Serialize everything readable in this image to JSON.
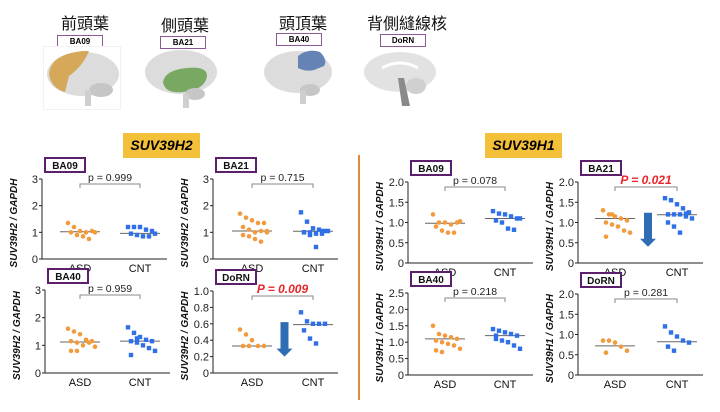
{
  "regions": [
    {
      "title": "前頭葉",
      "tag": "BA09",
      "color": "#d6a95a"
    },
    {
      "title": "側頭葉",
      "tag": "BA21",
      "color": "#79a863"
    },
    {
      "title": "頭頂葉",
      "tag": "BA40",
      "color": "#6583b5"
    },
    {
      "title": "背側縫線核",
      "tag": "DoRN",
      "color": "#8a8a8a"
    }
  ],
  "banners": {
    "left": "SUV39H2",
    "right": "SUV39H1"
  },
  "colors": {
    "asd": "#f29a3c",
    "cnt": "#2f6fe8",
    "significant": "#e8262b",
    "tag_border": "#5b1f6b",
    "arrow": "#2e6db4"
  },
  "chart_data": [
    {
      "type": "scatter",
      "gene": "SUV39H2",
      "tag": "BA09",
      "ylabel": "SUV39H2 / GAPDH",
      "categories": [
        "ASD",
        "CNT"
      ],
      "ylim": [
        0,
        3
      ],
      "yticks": [
        "0",
        "1",
        "2",
        "3"
      ],
      "p_text": "p = 0.999",
      "significant": false,
      "arrow": false,
      "series": [
        {
          "name": "ASD",
          "values": [
            1.35,
            1.2,
            1.05,
            1.0,
            1.05,
            1.0,
            0.9,
            0.85,
            0.75,
            1.0
          ],
          "median": 1.02
        },
        {
          "name": "CNT",
          "values": [
            1.2,
            1.2,
            1.2,
            1.1,
            1.05,
            0.95,
            0.9,
            0.85,
            0.85,
            0.95
          ],
          "median": 0.96
        }
      ]
    },
    {
      "type": "scatter",
      "gene": "SUV39H2",
      "tag": "BA21",
      "ylabel": "SUV39H2 / GAPDH",
      "categories": [
        "ASD",
        "CNT"
      ],
      "ylim": [
        0,
        3
      ],
      "yticks": [
        "0",
        "1",
        "2",
        "3"
      ],
      "p_text": "p = 0.715",
      "significant": false,
      "arrow": false,
      "series": [
        {
          "name": "ASD",
          "values": [
            1.7,
            1.55,
            1.45,
            1.35,
            1.35,
            1.2,
            1.1,
            1.0,
            1.05,
            1.0,
            0.9,
            0.85,
            0.75,
            0.65,
            1.05
          ],
          "median": 1.05
        },
        {
          "name": "CNT",
          "values": [
            1.75,
            1.4,
            1.15,
            1.1,
            1.05,
            1.0,
            1.0,
            0.95,
            0.95,
            1.05,
            1.0,
            0.9,
            0.45,
            1.05
          ],
          "median": 1.04
        }
      ]
    },
    {
      "type": "scatter",
      "gene": "SUV39H2",
      "tag": "BA40",
      "ylabel": "SUV39H2 / GAPDH",
      "categories": [
        "ASD",
        "CNT"
      ],
      "ylim": [
        0,
        3
      ],
      "yticks": [
        "0",
        "1",
        "2",
        "3"
      ],
      "p_text": "p = 0.959",
      "significant": false,
      "arrow": false,
      "series": [
        {
          "name": "ASD",
          "values": [
            1.6,
            1.5,
            1.4,
            1.2,
            1.15,
            1.15,
            1.1,
            1.0,
            1.1,
            0.95,
            0.8,
            0.8
          ],
          "median": 1.12
        },
        {
          "name": "CNT",
          "values": [
            1.65,
            1.45,
            1.3,
            1.2,
            1.15,
            1.15,
            1.1,
            1.0,
            0.9,
            0.8,
            0.65,
            1.25
          ],
          "median": 1.15
        }
      ]
    },
    {
      "type": "scatter",
      "gene": "SUV39H2",
      "tag": "DoRN",
      "ylabel": "SUV39H2 / GAPDH",
      "categories": [
        "ASD",
        "CNT"
      ],
      "ylim": [
        0,
        1
      ],
      "yticks": [
        "0",
        "0.2",
        "0.4",
        "0.6",
        "0.8",
        "1.0"
      ],
      "p_text": "P = 0.009",
      "significant": true,
      "arrow": true,
      "series": [
        {
          "name": "ASD",
          "values": [
            0.53,
            0.47,
            0.4,
            0.33,
            0.33,
            0.33,
            0.33
          ],
          "median": 0.33
        },
        {
          "name": "CNT",
          "values": [
            0.74,
            0.63,
            0.6,
            0.6,
            0.6,
            0.52,
            0.42,
            0.36
          ],
          "median": 0.59
        }
      ]
    },
    {
      "type": "scatter",
      "gene": "SUV39H1",
      "tag": "BA09",
      "ylabel": "SUV39H1 / GAPDH",
      "categories": [
        "ASD",
        "CNT"
      ],
      "ylim": [
        0,
        2
      ],
      "yticks": [
        "0",
        "0.5",
        "1.0",
        "1.5",
        "2.0"
      ],
      "p_text": "p = 0.078",
      "significant": false,
      "arrow": false,
      "series": [
        {
          "name": "ASD",
          "values": [
            1.2,
            1.0,
            1.0,
            0.95,
            1.0,
            0.9,
            0.8,
            0.75,
            0.75,
            1.03
          ],
          "median": 0.98
        },
        {
          "name": "CNT",
          "values": [
            1.28,
            1.22,
            1.2,
            1.15,
            1.1,
            1.05,
            1.0,
            0.85,
            0.82,
            1.1
          ],
          "median": 1.1
        }
      ]
    },
    {
      "type": "scatter",
      "gene": "SUV39H1",
      "tag": "BA21",
      "ylabel": "SUV39H1 / GAPDH",
      "categories": [
        "ASD",
        "CNT"
      ],
      "ylim": [
        0,
        2
      ],
      "yticks": [
        "0",
        "0.5",
        "1.0",
        "1.5",
        "2.0"
      ],
      "p_text": "P = 0.021",
      "significant": true,
      "arrow": true,
      "series": [
        {
          "name": "ASD",
          "values": [
            1.3,
            1.2,
            1.15,
            1.1,
            1.05,
            1.0,
            0.95,
            0.9,
            0.8,
            0.75,
            0.65,
            1.2
          ],
          "median": 1.1
        },
        {
          "name": "CNT",
          "values": [
            1.6,
            1.55,
            1.45,
            1.35,
            1.25,
            1.2,
            1.2,
            1.2,
            1.15,
            1.1,
            1.0,
            0.9,
            0.75,
            1.22
          ],
          "median": 1.19
        }
      ]
    },
    {
      "type": "scatter",
      "gene": "SUV39H1",
      "tag": "BA40",
      "ylabel": "SUV39H1 / GAPDH",
      "categories": [
        "ASD",
        "CNT"
      ],
      "ylim": [
        0,
        2.5
      ],
      "yticks": [
        "0",
        "0.5",
        "1.0",
        "1.5",
        "2.0",
        "2.5"
      ],
      "p_text": "p = 0.218",
      "significant": false,
      "arrow": false,
      "series": [
        {
          "name": "ASD",
          "values": [
            1.5,
            1.25,
            1.2,
            1.15,
            1.1,
            1.05,
            1.0,
            0.95,
            0.9,
            0.8,
            0.75,
            0.7
          ],
          "median": 1.1
        },
        {
          "name": "CNT",
          "values": [
            1.4,
            1.35,
            1.3,
            1.25,
            1.2,
            1.1,
            1.05,
            1.0,
            0.9,
            0.8,
            1.2
          ],
          "median": 1.2
        }
      ]
    },
    {
      "type": "scatter",
      "gene": "SUV39H1",
      "tag": "DoRN",
      "ylabel": "SUV39H1 / GAPDH",
      "categories": [
        "ASD",
        "CNT"
      ],
      "ylim": [
        0,
        2
      ],
      "yticks": [
        "0",
        "0.5",
        "1.0",
        "1.5",
        "2.0"
      ],
      "p_text": "p = 0.281",
      "significant": false,
      "arrow": false,
      "series": [
        {
          "name": "ASD",
          "values": [
            0.85,
            0.85,
            0.8,
            0.7,
            0.6,
            0.55
          ],
          "median": 0.72
        },
        {
          "name": "CNT",
          "values": [
            1.2,
            1.05,
            0.95,
            0.85,
            0.8,
            0.7,
            0.6
          ],
          "median": 0.82
        }
      ]
    }
  ]
}
